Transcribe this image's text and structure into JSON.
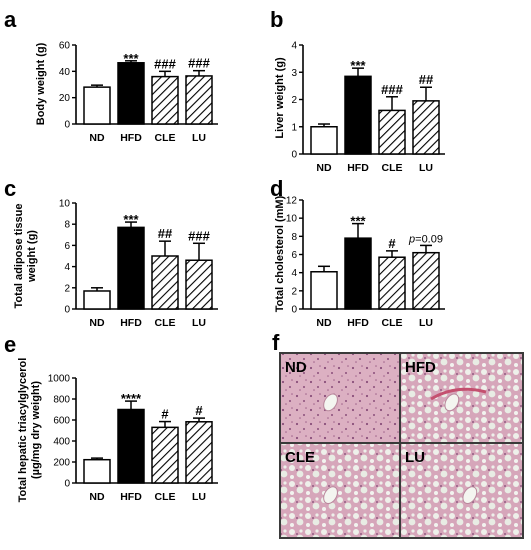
{
  "chart_data": [
    {
      "panel": "a",
      "type": "bar",
      "ylabel": "Body weight (g)",
      "categories": [
        "ND",
        "HFD",
        "CLE",
        "LU"
      ],
      "values": [
        28,
        46.5,
        36,
        36.5
      ],
      "errors": [
        1.5,
        1.5,
        4,
        4
      ],
      "annotations": [
        "",
        "***",
        "###",
        "###"
      ],
      "ylim": [
        0,
        60
      ],
      "yticks": [
        0,
        20,
        40,
        60
      ]
    },
    {
      "panel": "b",
      "type": "bar",
      "ylabel": "Liver weight (g)",
      "categories": [
        "ND",
        "HFD",
        "CLE",
        "LU"
      ],
      "values": [
        1.0,
        2.85,
        1.6,
        1.95
      ],
      "errors": [
        0.1,
        0.3,
        0.5,
        0.5
      ],
      "annotations": [
        "",
        "***",
        "###",
        "##"
      ],
      "ylim": [
        0,
        4
      ],
      "yticks": [
        0,
        1,
        2,
        3,
        4
      ]
    },
    {
      "panel": "c",
      "type": "bar",
      "ylabel": [
        "Total adipose tissue",
        "weight (g)"
      ],
      "categories": [
        "ND",
        "HFD",
        "CLE",
        "LU"
      ],
      "values": [
        1.7,
        7.7,
        5.0,
        4.6
      ],
      "errors": [
        0.3,
        0.5,
        1.4,
        1.6
      ],
      "annotations": [
        "",
        "***",
        "##",
        "###"
      ],
      "ylim": [
        0,
        10
      ],
      "yticks": [
        0,
        2,
        4,
        6,
        8,
        10
      ]
    },
    {
      "panel": "d",
      "type": "bar",
      "ylabel": "Total cholesterol (mM)",
      "categories": [
        "ND",
        "HFD",
        "CLE",
        "LU"
      ],
      "values": [
        4.1,
        7.8,
        5.7,
        6.2
      ],
      "errors": [
        0.6,
        1.6,
        0.7,
        0.8
      ],
      "annotations": [
        "",
        "***",
        "#",
        "p=0.09"
      ],
      "ylim": [
        0,
        12
      ],
      "yticks": [
        0,
        2,
        4,
        6,
        8,
        10,
        12
      ]
    },
    {
      "panel": "e",
      "type": "bar",
      "ylabel": [
        "Total hepatic triacylglycerol",
        "(µg/mg dry weight)"
      ],
      "categories": [
        "ND",
        "HFD",
        "CLE",
        "LU"
      ],
      "values": [
        222,
        700,
        530,
        583
      ],
      "errors": [
        15,
        80,
        55,
        35
      ],
      "annotations": [
        "",
        "****",
        "#",
        "#"
      ],
      "ylim": [
        0,
        1000
      ],
      "yticks": [
        0,
        200,
        400,
        600,
        800,
        1000
      ]
    }
  ],
  "histology": {
    "panel": "f",
    "labels": [
      "ND",
      "HFD",
      "CLE",
      "LU"
    ]
  },
  "colors": {
    "ND": "#ffffff",
    "HFD": "#000000",
    "hatch": "#000000",
    "tissue_pink": "#d7a7b9",
    "tissue_bg": "#e9cfd8"
  }
}
